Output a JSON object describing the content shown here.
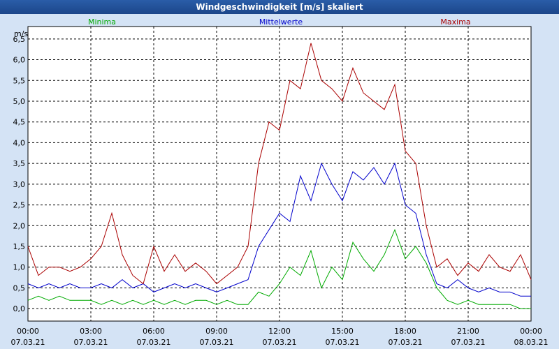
{
  "chart_data": {
    "type": "line",
    "title": "Windgeschwindigkeit [m/s] skaliert",
    "ylabel": "m/s",
    "xlabel": "",
    "ylim": [
      -0.3,
      6.8
    ],
    "yticks": [
      0.0,
      0.5,
      1.0,
      1.5,
      2.0,
      2.5,
      3.0,
      3.5,
      4.0,
      4.5,
      5.0,
      5.5,
      6.0,
      6.5
    ],
    "ytick_labels": [
      "0,0",
      "0,5",
      "1,0",
      "1,5",
      "2,0",
      "2,5",
      "3,0",
      "3,5",
      "4,0",
      "4,5",
      "5,0",
      "5,5",
      "6,0",
      "6,5"
    ],
    "xlim": [
      0,
      24
    ],
    "xticks": [
      0,
      3,
      6,
      9,
      12,
      15,
      18,
      21,
      24
    ],
    "xtick_time": [
      "00:00",
      "03:00",
      "06:00",
      "09:00",
      "12:00",
      "15:00",
      "18:00",
      "21:00",
      "00:00"
    ],
    "xtick_date": [
      "07.03.21",
      "07.03.21",
      "07.03.21",
      "07.03.21",
      "07.03.21",
      "07.03.21",
      "07.03.21",
      "07.03.21",
      "08.03.21"
    ],
    "legend_placement": "top",
    "grid": true,
    "series": [
      {
        "name": "Minima",
        "color": "#00aa00",
        "x": [
          0,
          0.5,
          1,
          1.5,
          2,
          2.5,
          3,
          3.5,
          4,
          4.5,
          5,
          5.5,
          6,
          6.5,
          7,
          7.5,
          8,
          8.5,
          9,
          9.5,
          10,
          10.5,
          11,
          11.5,
          12,
          12.5,
          13,
          13.5,
          14,
          14.5,
          15,
          15.5,
          16,
          16.5,
          17,
          17.5,
          18,
          18.5,
          19,
          19.5,
          20,
          20.5,
          21,
          21.5,
          22,
          22.5,
          23,
          23.5,
          24
        ],
        "values": [
          0.2,
          0.3,
          0.2,
          0.3,
          0.2,
          0.2,
          0.2,
          0.1,
          0.2,
          0.1,
          0.2,
          0.1,
          0.2,
          0.1,
          0.2,
          0.1,
          0.2,
          0.2,
          0.1,
          0.2,
          0.1,
          0.1,
          0.4,
          0.3,
          0.6,
          1.0,
          0.8,
          1.4,
          0.5,
          1.0,
          0.7,
          1.6,
          1.2,
          0.9,
          1.3,
          1.9,
          1.2,
          1.5,
          1.1,
          0.5,
          0.2,
          0.1,
          0.2,
          0.1,
          0.1,
          0.1,
          0.1,
          0.0,
          0.0
        ]
      },
      {
        "name": "Mittelwerte",
        "color": "#0000cc",
        "x": [
          0,
          0.5,
          1,
          1.5,
          2,
          2.5,
          3,
          3.5,
          4,
          4.5,
          5,
          5.5,
          6,
          6.5,
          7,
          7.5,
          8,
          8.5,
          9,
          9.5,
          10,
          10.5,
          11,
          11.5,
          12,
          12.5,
          13,
          13.5,
          14,
          14.5,
          15,
          15.5,
          16,
          16.5,
          17,
          17.5,
          18,
          18.5,
          19,
          19.5,
          20,
          20.5,
          21,
          21.5,
          22,
          22.5,
          23,
          23.5,
          24
        ],
        "values": [
          0.6,
          0.5,
          0.6,
          0.5,
          0.6,
          0.5,
          0.5,
          0.6,
          0.5,
          0.7,
          0.5,
          0.6,
          0.4,
          0.5,
          0.6,
          0.5,
          0.6,
          0.5,
          0.4,
          0.5,
          0.6,
          0.7,
          1.5,
          1.9,
          2.3,
          2.1,
          3.2,
          2.6,
          3.5,
          3.0,
          2.6,
          3.3,
          3.1,
          3.4,
          3.0,
          3.5,
          2.5,
          2.3,
          1.3,
          0.6,
          0.5,
          0.7,
          0.5,
          0.4,
          0.5,
          0.4,
          0.4,
          0.3,
          0.3
        ]
      },
      {
        "name": "Maxima",
        "color": "#aa0000",
        "x": [
          0,
          0.5,
          1,
          1.5,
          2,
          2.5,
          3,
          3.5,
          4,
          4.5,
          5,
          5.5,
          6,
          6.5,
          7,
          7.5,
          8,
          8.5,
          9,
          9.5,
          10,
          10.5,
          11,
          11.5,
          12,
          12.5,
          13,
          13.5,
          14,
          14.5,
          15,
          15.5,
          16,
          16.5,
          17,
          17.5,
          18,
          18.5,
          19,
          19.5,
          20,
          20.5,
          21,
          21.5,
          22,
          22.5,
          23,
          23.5,
          24
        ],
        "values": [
          1.5,
          0.8,
          1.0,
          1.0,
          0.9,
          1.0,
          1.2,
          1.5,
          2.3,
          1.3,
          0.8,
          0.6,
          1.5,
          0.9,
          1.3,
          0.9,
          1.1,
          0.9,
          0.6,
          0.8,
          1.0,
          1.5,
          3.5,
          4.5,
          4.3,
          5.5,
          5.3,
          6.4,
          5.5,
          5.3,
          5.0,
          5.8,
          5.2,
          5.0,
          4.8,
          5.4,
          3.8,
          3.5,
          2.0,
          1.0,
          1.2,
          0.8,
          1.1,
          0.9,
          1.3,
          1.0,
          0.9,
          1.3,
          0.7
        ]
      }
    ]
  }
}
